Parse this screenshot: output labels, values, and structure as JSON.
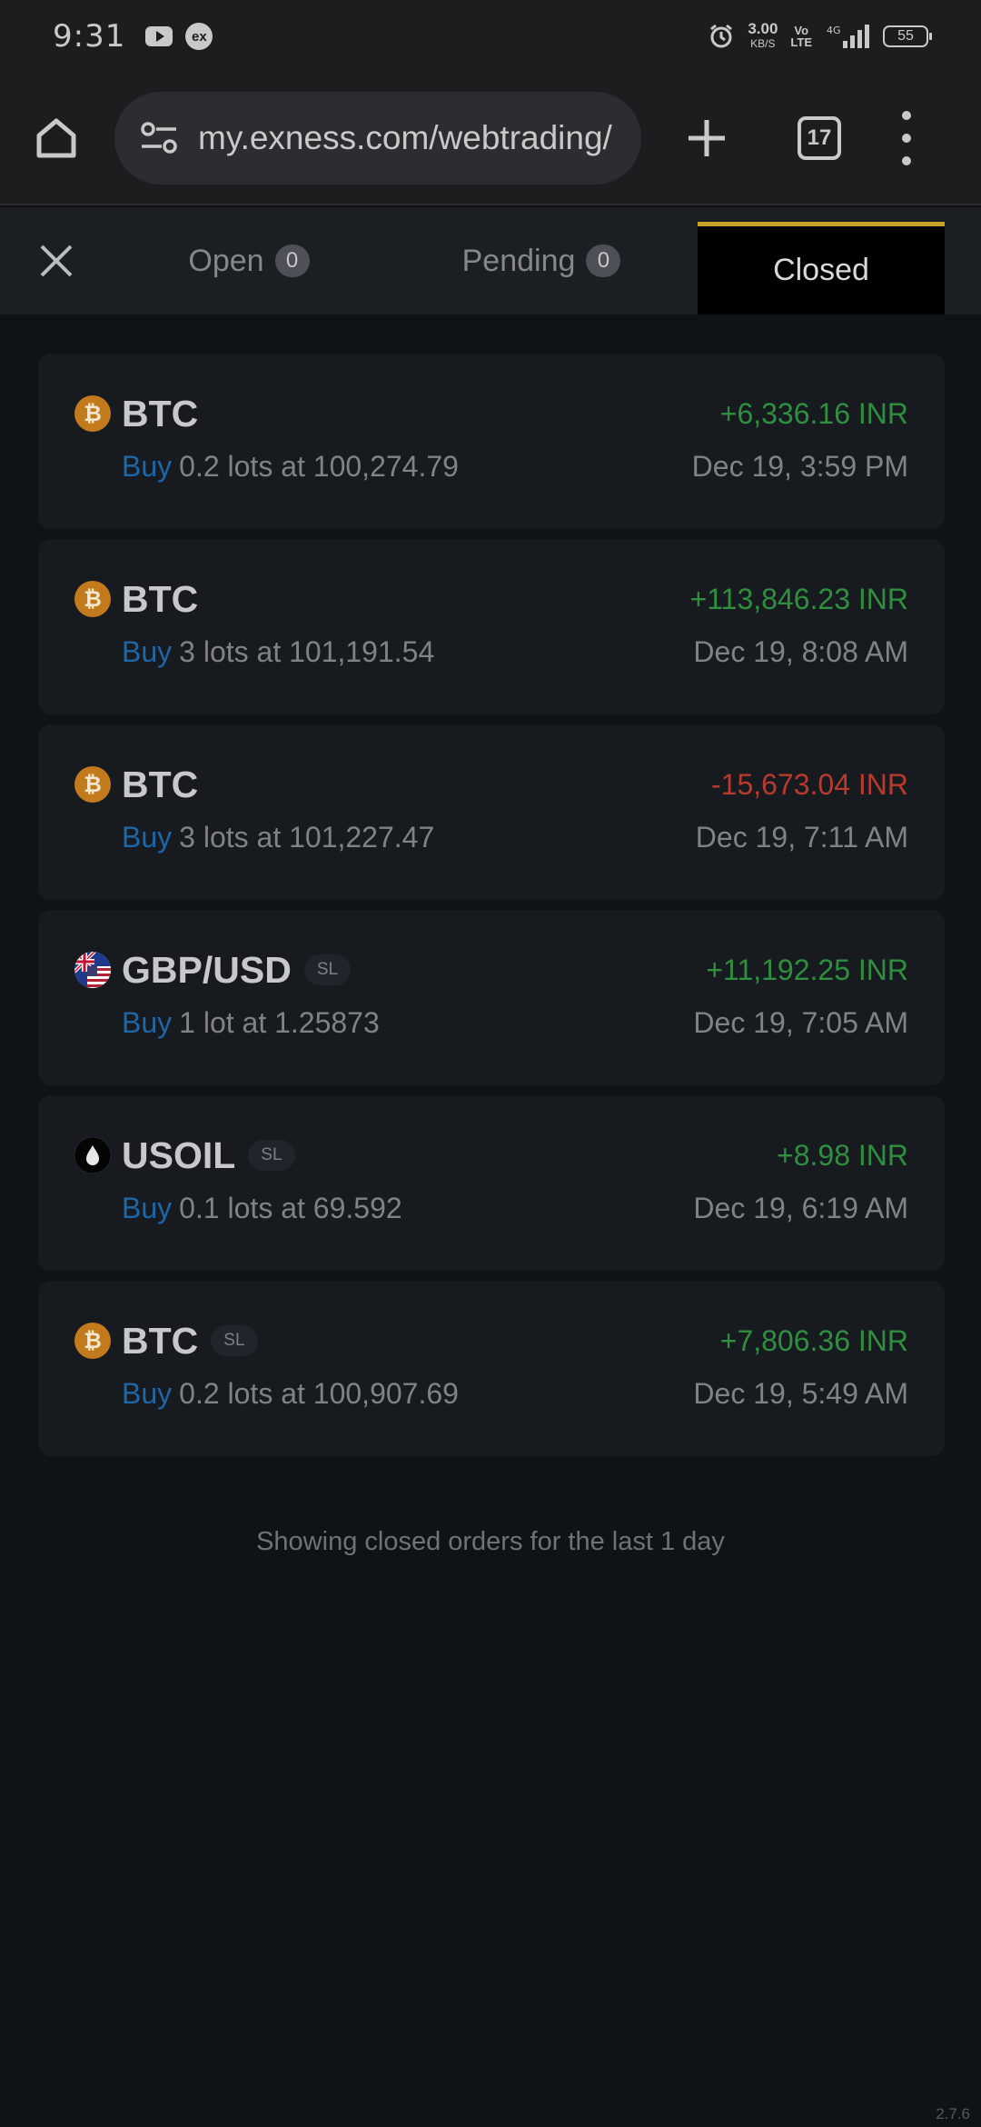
{
  "status_bar": {
    "time": "9:31",
    "speed_value": "3.00",
    "speed_unit": "KB/S",
    "volte_top": "Vo",
    "volte_bottom": "LTE",
    "network": "4G",
    "battery": "55"
  },
  "browser": {
    "url": "my.exness.com/webtrading/",
    "tab_count": "17"
  },
  "order_tabs": {
    "open_label": "Open",
    "open_count": "0",
    "pending_label": "Pending",
    "pending_count": "0",
    "closed_label": "Closed",
    "active": "Closed"
  },
  "orders": [
    {
      "symbol": "BTC",
      "icon": "bitcoin-icon",
      "sl": "",
      "pnl": "+6,336.16 INR",
      "side": "Buy",
      "detail": "0.2 lots at 100,274.79",
      "time": "Dec 19, 3:59 PM"
    },
    {
      "symbol": "BTC",
      "icon": "bitcoin-icon",
      "sl": "",
      "pnl": "+113,846.23 INR",
      "side": "Buy",
      "detail": "3 lots at 101,191.54",
      "time": "Dec 19, 8:08 AM"
    },
    {
      "symbol": "BTC",
      "icon": "bitcoin-icon",
      "sl": "",
      "pnl": "-15,673.04 INR",
      "side": "Buy",
      "detail": "3 lots at 101,227.47",
      "time": "Dec 19, 7:11 AM"
    },
    {
      "symbol": "GBP/USD",
      "icon": "flag-gb-us-icon",
      "sl": "SL",
      "pnl": "+11,192.25 INR",
      "side": "Buy",
      "detail": "1 lot at 1.25873",
      "time": "Dec 19, 7:05 AM"
    },
    {
      "symbol": "USOIL",
      "icon": "oil-drop-icon",
      "sl": "SL",
      "pnl": "+8.98 INR",
      "side": "Buy",
      "detail": "0.1 lots at 69.592",
      "time": "Dec 19, 6:19 AM"
    },
    {
      "symbol": "BTC",
      "icon": "bitcoin-icon",
      "sl": "SL",
      "pnl": "+7,806.36 INR",
      "side": "Buy",
      "detail": "0.2 lots at 100,907.69",
      "time": "Dec 19, 5:49 AM"
    }
  ],
  "footer_note": "Showing closed orders for the last 1 day",
  "version": "2.7.6",
  "colors": {
    "profit": "#2f8f3e",
    "loss": "#b93a2d",
    "buy": "#1f66a6",
    "accent": "#c5a127"
  }
}
